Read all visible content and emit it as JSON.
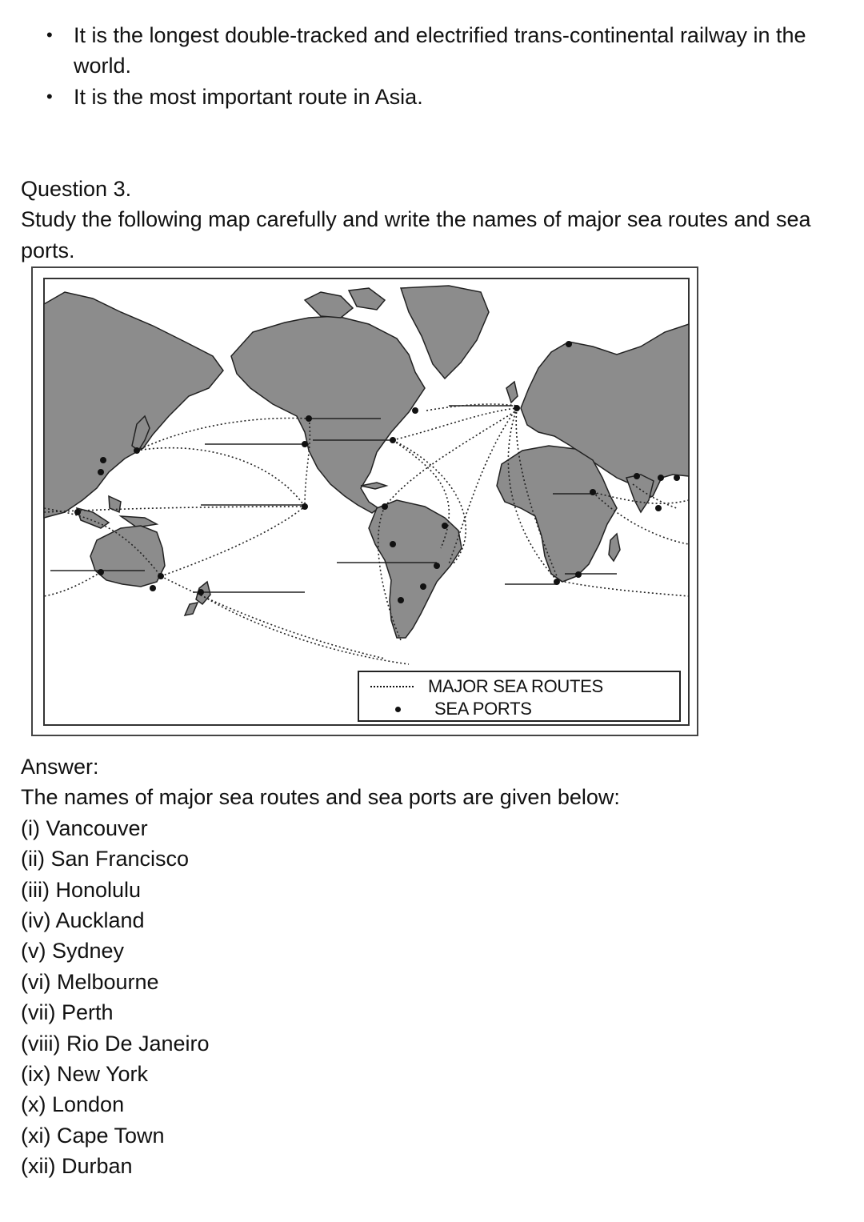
{
  "bullets": [
    "It is the longest double-tracked and electrified trans-continental railway in the world.",
    "It is the most important route in Asia."
  ],
  "question": {
    "heading": "Question 3.",
    "prompt": "Study the following map carefully and write the names of major sea routes and sea ports."
  },
  "map": {
    "legend": {
      "routes_label": "MAJOR SEA ROUTES",
      "ports_label": "SEA PORTS"
    }
  },
  "answer": {
    "heading": "Answer:",
    "intro": "The names of major sea routes and sea ports are given below:",
    "ports": [
      "(i) Vancouver",
      "(ii) San Francisco",
      "(iii) Honolulu",
      "(iv) Auckland",
      "(v) Sydney",
      "(vi) Melbourne",
      "(vii) Perth",
      "(viii) Rio De Janeiro",
      "(ix) New York",
      "(x) London",
      "(xi) Cape Town",
      "(xii) Durban"
    ]
  }
}
